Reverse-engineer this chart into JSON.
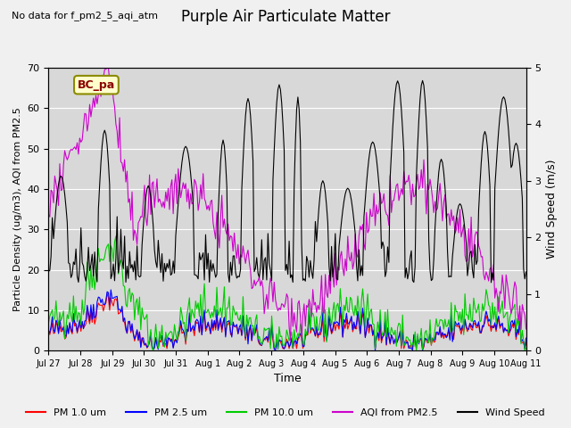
{
  "title": "Purple Air Particulate Matter",
  "subtitle": "No data for f_pm2_5_aqi_atm",
  "ylabel_left": "Particle Density (ug/m3), AQI from PM2.5",
  "ylabel_right": "Wind Speed (m/s)",
  "xlabel": "Time",
  "ylim_left": [
    0,
    70
  ],
  "ylim_right": [
    0,
    5.0
  ],
  "xtick_labels": [
    "Jul 27",
    "Jul 28",
    "Jul 29",
    "Jul 30",
    "Jul 31",
    "Aug 1",
    "Aug 2",
    "Aug 3",
    "Aug 4",
    "Aug 5",
    "Aug 6",
    "Aug 7",
    "Aug 8",
    "Aug 9",
    "Aug 10",
    "Aug 11"
  ],
  "legend_labels": [
    "PM 1.0 um",
    "PM 2.5 um",
    "PM 10.0 um",
    "AQI from PM2.5",
    "Wind Speed"
  ],
  "legend_colors": [
    "#ff0000",
    "#0000ff",
    "#00cc00",
    "#cc00cc",
    "#000000"
  ],
  "annotation_text": "BC_pa",
  "annotation_box_color": "#ffffcc",
  "annotation_box_edge": "#8B8B00",
  "fig_bg_color": "#f0f0f0",
  "plot_bg_color": "#d8d8d8",
  "grid_color": "#ffffff",
  "n_points": 384,
  "seed": 42
}
